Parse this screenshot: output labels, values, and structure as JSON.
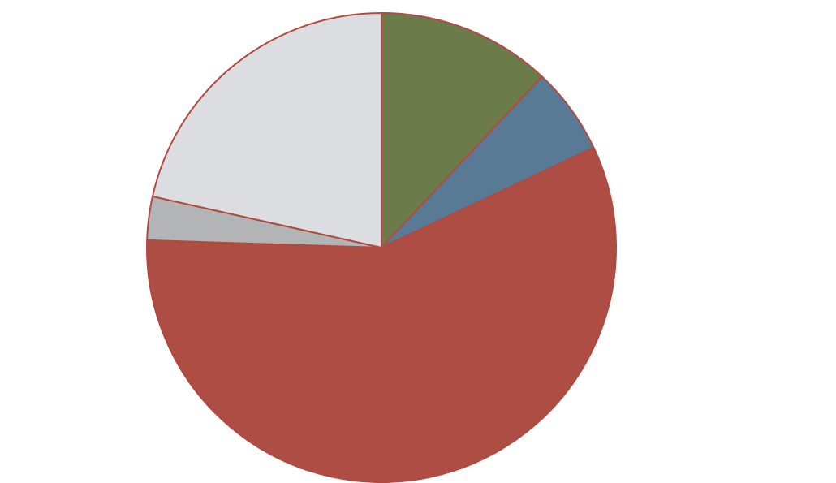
{
  "chart_data": {
    "type": "pie",
    "categories": [
      null,
      null,
      null,
      null,
      null
    ],
    "values": [
      12,
      6,
      57.5,
      3,
      21.5
    ],
    "colors": [
      "#6b7c4a",
      "#587a95",
      "#ad4d43",
      "#b3b4b6",
      "#dcdde0"
    ],
    "edge_color": "#b04a40"
  }
}
